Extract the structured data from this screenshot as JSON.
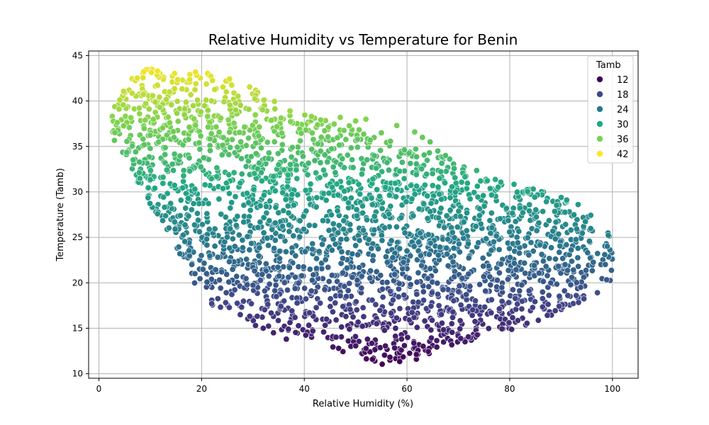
{
  "chart_data": {
    "type": "scatter",
    "title": "Relative Humidity vs Temperature for Benin",
    "xlabel": "Relative Humidity (%)",
    "ylabel": "Temperature (Tamb)",
    "xlim": [
      -2,
      105
    ],
    "ylim": [
      9.5,
      45.5
    ],
    "x_ticks": [
      0,
      20,
      40,
      60,
      80,
      100
    ],
    "y_ticks": [
      10,
      15,
      20,
      25,
      30,
      35,
      40,
      45
    ],
    "grid": true,
    "legend": {
      "title": "Tamb",
      "placement": "top-right",
      "entries": [
        {
          "label": "12",
          "color": "#440154"
        },
        {
          "label": "18",
          "color": "#414487"
        },
        {
          "label": "24",
          "color": "#2a788e"
        },
        {
          "label": "30",
          "color": "#22a884"
        },
        {
          "label": "36",
          "color": "#7ad151"
        },
        {
          "label": "42",
          "color": "#fde725"
        }
      ]
    },
    "color_scale": {
      "variable": "Tamb",
      "domain": [
        11,
        44
      ],
      "stops": [
        "#440154",
        "#414487",
        "#2a788e",
        "#22a884",
        "#7ad151",
        "#fde725"
      ]
    },
    "point_cloud": {
      "description_region": [
        [
          2,
          38.5
        ],
        [
          5,
          41.5
        ],
        [
          8,
          43.8
        ],
        [
          15,
          43.2
        ],
        [
          22,
          43.3
        ],
        [
          30,
          41.5
        ],
        [
          38,
          39.0
        ],
        [
          48,
          37.5
        ],
        [
          60,
          35.2
        ],
        [
          70,
          33.3
        ],
        [
          80,
          31.0
        ],
        [
          88,
          30.0
        ],
        [
          95,
          28.5
        ],
        [
          99,
          26.5
        ],
        [
          100,
          24.5
        ],
        [
          100,
          20.5
        ],
        [
          97,
          18.5
        ],
        [
          92,
          17.5
        ],
        [
          85,
          15.5
        ],
        [
          78,
          14.5
        ],
        [
          70,
          13.0
        ],
        [
          62,
          11.3
        ],
        [
          55,
          11.0
        ],
        [
          50,
          11.8
        ],
        [
          42,
          13.5
        ],
        [
          35,
          14.8
        ],
        [
          28,
          16.0
        ],
        [
          22,
          17.5
        ],
        [
          18,
          20.0
        ],
        [
          15,
          24.0
        ],
        [
          10,
          28.5
        ],
        [
          6,
          32.5
        ],
        [
          3,
          35.5
        ]
      ],
      "outliers": [
        [
          47,
          38.2
        ],
        [
          50,
          37.8
        ],
        [
          52,
          38.0
        ],
        [
          55,
          36.5
        ],
        [
          58,
          37.3
        ],
        [
          61.5,
          36.6
        ],
        [
          63,
          36.0
        ],
        [
          64.5,
          35.5
        ],
        [
          66,
          34.5
        ],
        [
          67.5,
          34.0
        ],
        [
          32,
          15.0
        ],
        [
          34,
          14.5
        ],
        [
          36.5,
          13.8
        ],
        [
          30.5,
          15.3
        ],
        [
          98.5,
          23.1
        ]
      ]
    }
  }
}
